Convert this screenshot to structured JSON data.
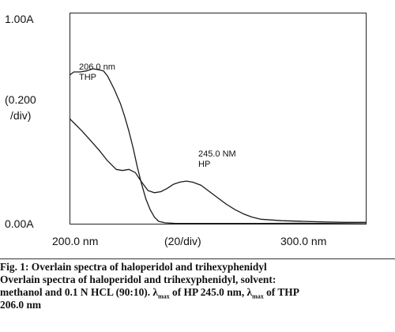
{
  "chart_data": {
    "type": "line",
    "title": "",
    "y_ticks": [
      "1.00A",
      "0.00A"
    ],
    "y_scale_label": [
      "(0.200",
      "/div)"
    ],
    "x_ticks": [
      "200.0 nm",
      "(20/div)",
      "300.0 nm"
    ],
    "xlim": [
      190,
      330
    ],
    "ylim": [
      0.0,
      1.0
    ],
    "series": [
      {
        "name": "THP",
        "peak_label": [
          "206.0 nm",
          "THP"
        ],
        "x": [
          190,
          192,
          195,
          198,
          201,
          204,
          206,
          208,
          211,
          214,
          216,
          218,
          220,
          222,
          224,
          226,
          228,
          230,
          232,
          235,
          240,
          245,
          260,
          280,
          300,
          320,
          330
        ],
        "y": [
          0.705,
          0.72,
          0.72,
          0.725,
          0.735,
          0.73,
          0.725,
          0.7,
          0.64,
          0.57,
          0.51,
          0.44,
          0.36,
          0.27,
          0.19,
          0.12,
          0.07,
          0.035,
          0.015,
          0.008,
          0.005,
          0.005,
          0.005,
          0.005,
          0.006,
          0.004,
          0.003
        ]
      },
      {
        "name": "HP",
        "peak_label": [
          "245.0 NM",
          "HP"
        ],
        "x": [
          190,
          193,
          196,
          200,
          204,
          208,
          212,
          215,
          218,
          221,
          224,
          227,
          230,
          233,
          236,
          239,
          242,
          245,
          248,
          252,
          256,
          260,
          264,
          268,
          272,
          276,
          280,
          290,
          300,
          310,
          320,
          330
        ],
        "y": [
          0.5,
          0.47,
          0.44,
          0.395,
          0.35,
          0.3,
          0.26,
          0.255,
          0.26,
          0.245,
          0.2,
          0.16,
          0.15,
          0.155,
          0.17,
          0.19,
          0.2,
          0.205,
          0.2,
          0.185,
          0.155,
          0.125,
          0.095,
          0.07,
          0.05,
          0.035,
          0.025,
          0.018,
          0.015,
          0.012,
          0.01,
          0.01
        ]
      }
    ]
  },
  "caption": {
    "fig_label": "Fig. 1: Overlain spectra of haloperidol and trihexyphenidyl",
    "line1": "Overlain spectra of haloperidol and trihexyphenidyl, solvent:",
    "line2_pre": "methanol and 0.1 N HCL (90:10). λ",
    "max_sub": "max",
    "line2_mid": " of HP 245.0 nm, λ",
    "line2_post": " of THP",
    "line3": "206.0 nm"
  }
}
